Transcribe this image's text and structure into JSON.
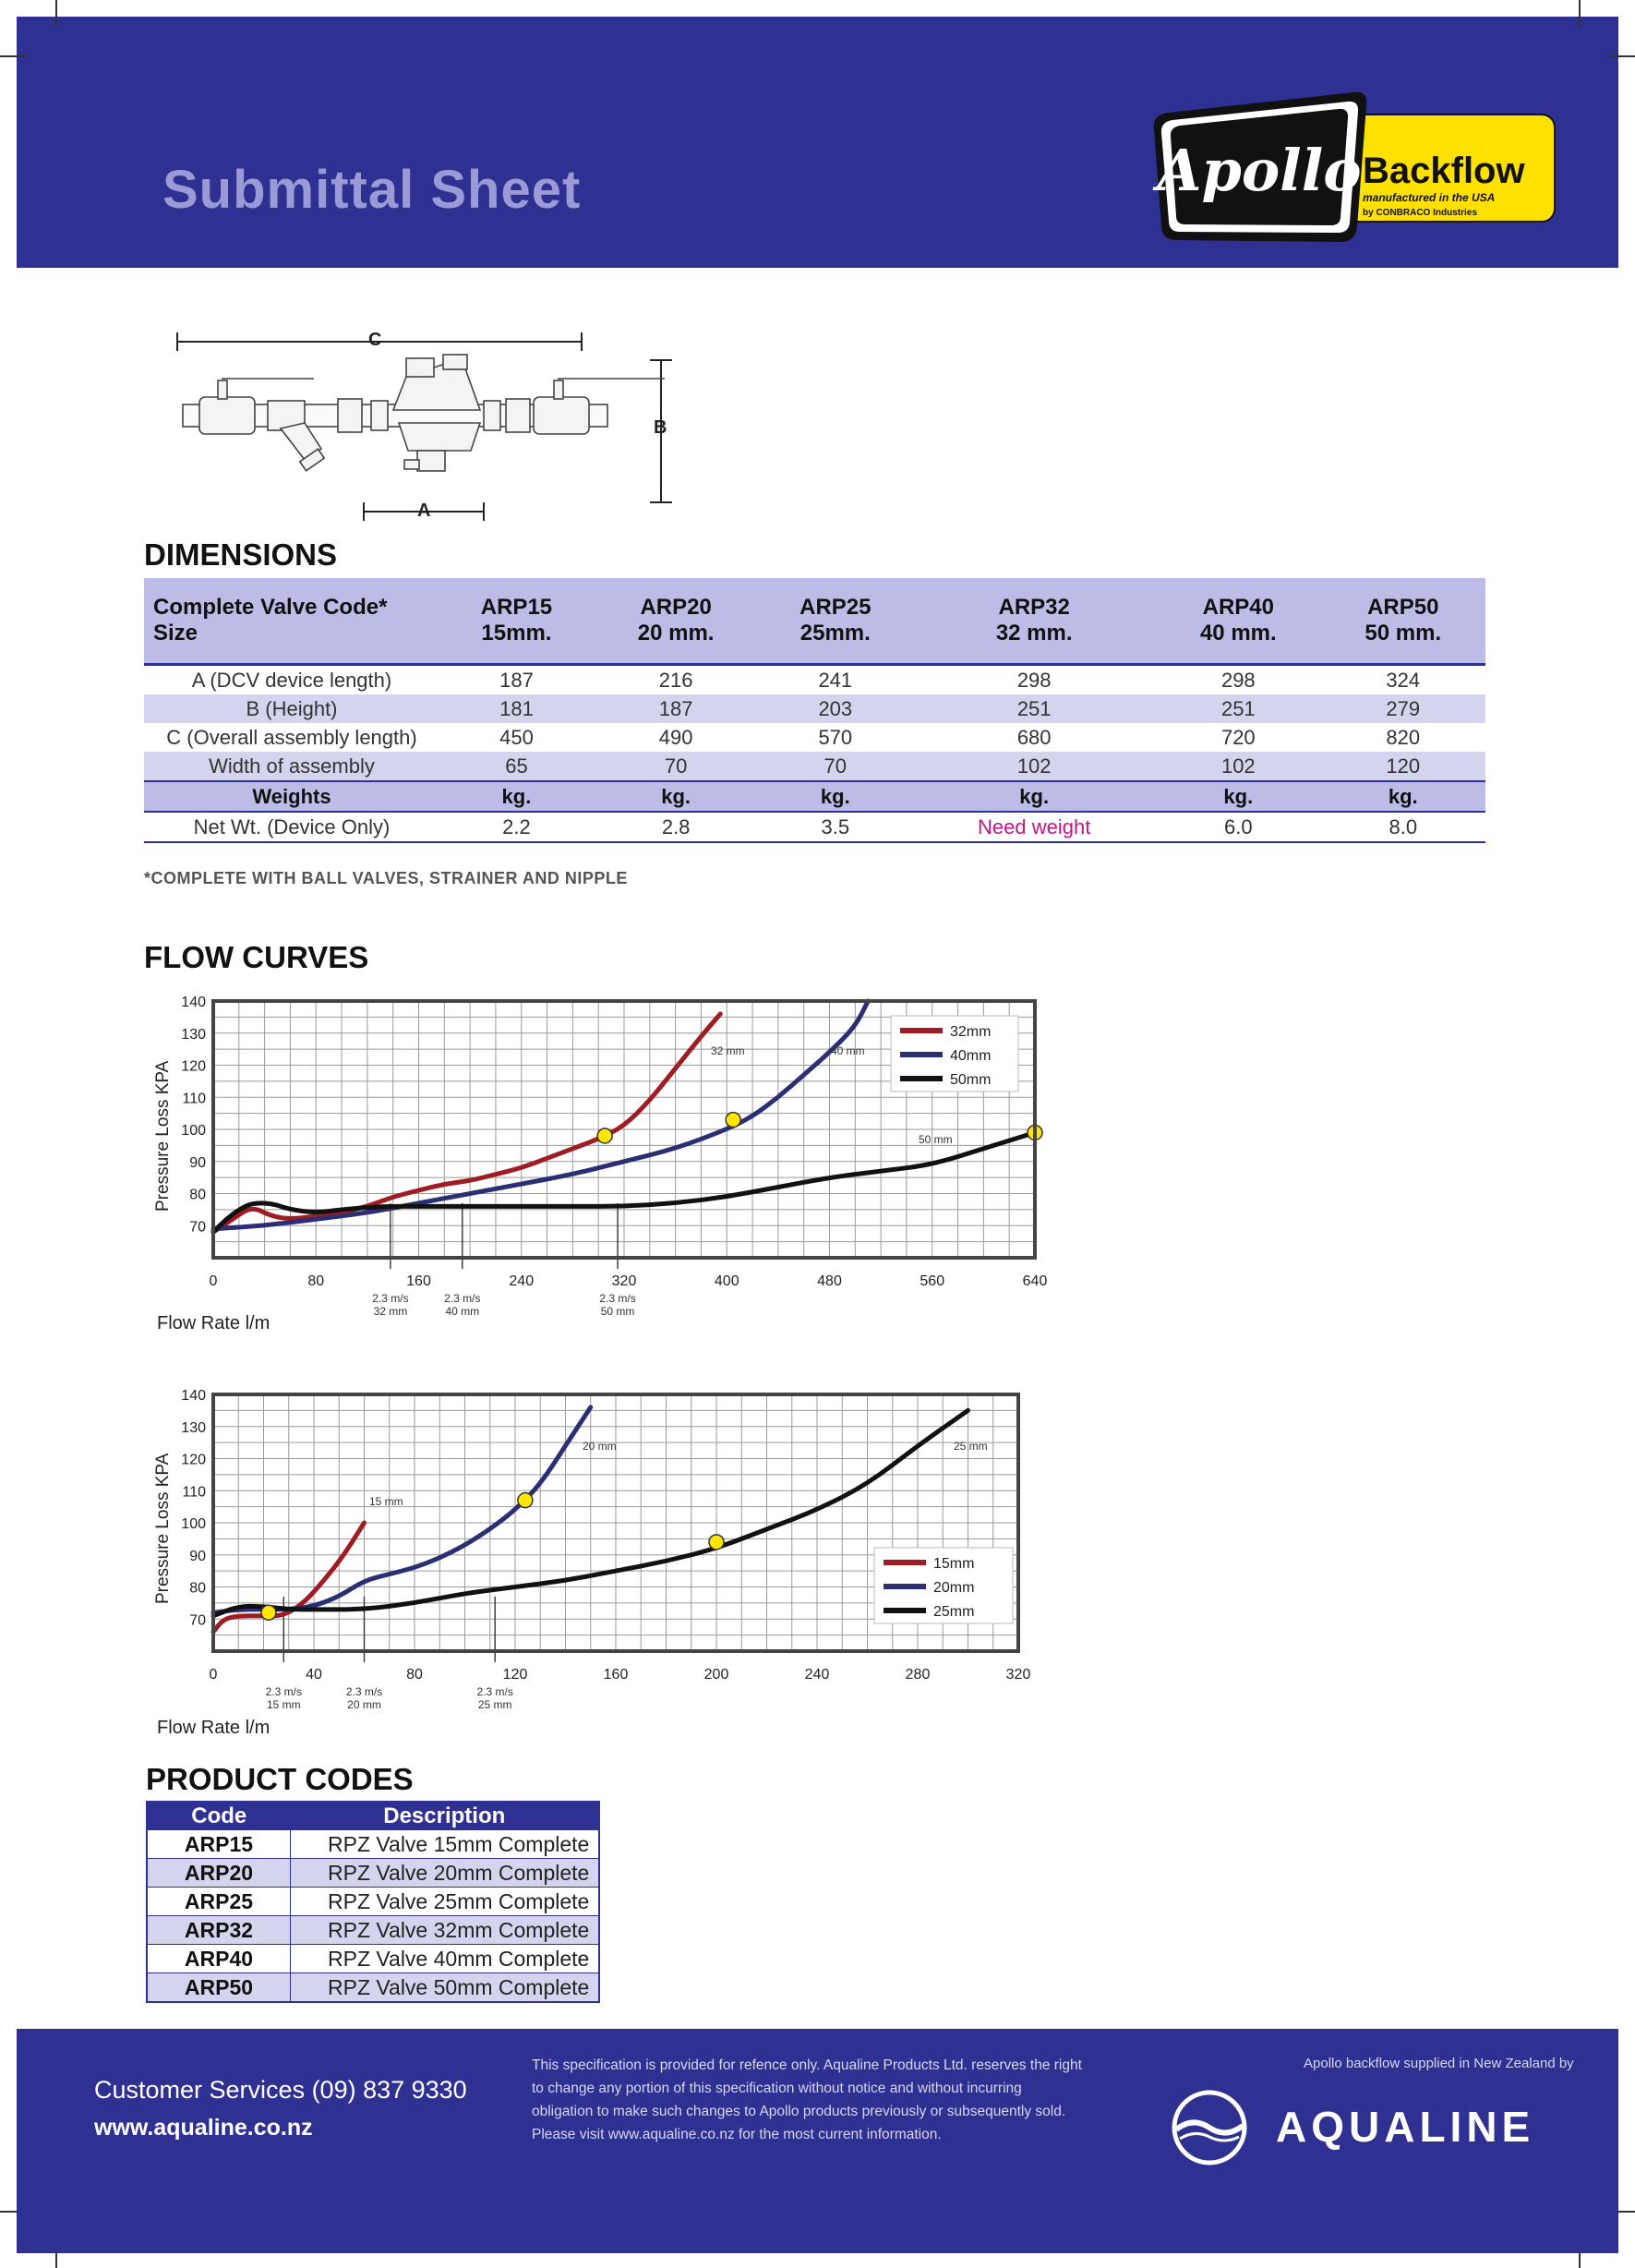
{
  "header": {
    "title": "Submittal Sheet"
  },
  "logo": {
    "brand": "Apollo",
    "product": "Backflow",
    "line1": "manufactured in the USA",
    "line2": "by CONBRACO Industries"
  },
  "diagram": {
    "label_a": "A",
    "label_b": "B",
    "label_c": "C"
  },
  "dimensions": {
    "title": "DIMENSIONS",
    "head_label1": "Complete Valve Code*",
    "head_label2": "Size",
    "columns": [
      {
        "code": "ARP15",
        "size": "15mm."
      },
      {
        "code": "ARP20",
        "size": "20 mm."
      },
      {
        "code": "ARP25",
        "size": "25mm."
      },
      {
        "code": "ARP32",
        "size": "32 mm."
      },
      {
        "code": "ARP40",
        "size": "40 mm."
      },
      {
        "code": "ARP50",
        "size": "50 mm."
      }
    ],
    "rows": [
      {
        "label": "A (DCV device length)",
        "values": [
          "187",
          "216",
          "241",
          "298",
          "298",
          "324"
        ]
      },
      {
        "label": "B (Height)",
        "values": [
          "181",
          "187",
          "203",
          "251",
          "251",
          "279"
        ]
      },
      {
        "label": "C (Overall assembly length)",
        "values": [
          "450",
          "490",
          "570",
          "680",
          "720",
          "820"
        ]
      },
      {
        "label": "Width of assembly",
        "values": [
          "65",
          "70",
          "70",
          "102",
          "102",
          "120"
        ]
      },
      {
        "label": "Weights",
        "values": [
          "kg.",
          "kg.",
          "kg.",
          "kg.",
          "kg.",
          "kg."
        ]
      },
      {
        "label": "Net Wt. (Device Only)",
        "values": [
          "2.2",
          "2.8",
          "3.5",
          "Need weight",
          "6.0",
          "8.0"
        ]
      }
    ],
    "footnote": "*COMPLETE WITH BALL VALVES, STRAINER AND NIPPLE"
  },
  "flow": {
    "title": "FLOW CURVES"
  },
  "chart_data": [
    {
      "type": "line",
      "ylabel": "Pressure Loss KPA",
      "xlabel": "Flow Rate l/m",
      "xlim": [
        0,
        640
      ],
      "ylim": [
        60,
        140
      ],
      "xticks": [
        "0",
        "80",
        "160",
        "240",
        "320",
        "400",
        "480",
        "560",
        "640"
      ],
      "yticks": [
        "70",
        "80",
        "90",
        "100",
        "110",
        "120",
        "130",
        "140"
      ],
      "grid": true,
      "legend_position": "top-right",
      "colors": [
        "#a01c23",
        "#2b2e72",
        "#111111"
      ],
      "series": [
        {
          "name": "32mm",
          "label": "32 mm",
          "x": [
            0,
            15,
            30,
            45,
            60,
            80,
            100,
            120,
            140,
            160,
            180,
            200,
            220,
            240,
            260,
            280,
            300,
            320,
            340,
            360,
            380,
            395
          ],
          "y": [
            68,
            72,
            76,
            73,
            72,
            73,
            74,
            76,
            79,
            81,
            83,
            84,
            86,
            88,
            91,
            94,
            97,
            101,
            109,
            119,
            129,
            136
          ]
        },
        {
          "name": "40mm",
          "label": "40 mm",
          "x": [
            0,
            40,
            80,
            120,
            160,
            200,
            240,
            280,
            320,
            360,
            400,
            420,
            440,
            460,
            480,
            500,
            510
          ],
          "y": [
            69,
            70,
            72,
            74,
            77,
            80,
            83,
            86,
            90,
            94,
            100,
            104,
            110,
            117,
            124,
            132,
            140
          ]
        },
        {
          "name": "50mm",
          "label": "50 mm",
          "x": [
            0,
            10,
            20,
            30,
            45,
            60,
            80,
            100,
            130,
            160,
            200,
            240,
            280,
            320,
            360,
            400,
            440,
            480,
            520,
            560,
            600,
            640
          ],
          "y": [
            68,
            72,
            75,
            77,
            77,
            75,
            74,
            75,
            76,
            76,
            76,
            76,
            76,
            76,
            77,
            79,
            82,
            85,
            87,
            89,
            94,
            99
          ]
        }
      ],
      "markers": [
        {
          "x": 305,
          "y": 98
        },
        {
          "x": 405,
          "y": 103
        },
        {
          "x": 640,
          "y": 99
        }
      ],
      "vlines": [
        {
          "x": 138,
          "label1": "2.3 m/s",
          "label2": "32 mm"
        },
        {
          "x": 194,
          "label1": "2.3 m/s",
          "label2": "40 mm"
        },
        {
          "x": 315,
          "label1": "2.3 m/s",
          "label2": "50 mm"
        }
      ]
    },
    {
      "type": "line",
      "ylabel": "Pressure Loss KPA",
      "xlabel": "Flow Rate l/m",
      "xlim": [
        0,
        320
      ],
      "ylim": [
        60,
        140
      ],
      "xticks": [
        "0",
        "40",
        "80",
        "120",
        "160",
        "200",
        "240",
        "280",
        "320"
      ],
      "xtick_values": [
        0,
        40,
        80,
        120,
        160,
        200,
        240,
        280,
        320
      ],
      "yticks": [
        "70",
        "80",
        "90",
        "100",
        "110",
        "120",
        "130",
        "140"
      ],
      "grid": true,
      "legend_position": "bottom-right",
      "colors": [
        "#a01c23",
        "#2b2e72",
        "#111111"
      ],
      "series": [
        {
          "name": "15mm",
          "label": "15 mm",
          "x": [
            0,
            4,
            10,
            20,
            28,
            36,
            44,
            52,
            60
          ],
          "y": [
            66,
            70,
            71,
            71,
            71,
            75,
            82,
            90,
            100
          ]
        },
        {
          "name": "20mm",
          "label": "20 mm",
          "x": [
            0,
            10,
            20,
            30,
            40,
            50,
            60,
            70,
            80,
            90,
            100,
            110,
            120,
            130,
            140,
            150
          ],
          "y": [
            72,
            73,
            73,
            73,
            74,
            77,
            82,
            84,
            86,
            89,
            93,
            98,
            104,
            112,
            124,
            136
          ]
        },
        {
          "name": "25mm",
          "label": "25 mm",
          "x": [
            0,
            10,
            20,
            30,
            40,
            60,
            80,
            100,
            120,
            140,
            160,
            180,
            200,
            220,
            240,
            260,
            280,
            300
          ],
          "y": [
            71,
            74,
            74,
            73,
            73,
            73,
            75,
            78,
            80,
            82,
            85,
            88,
            92,
            98,
            104,
            112,
            124,
            135
          ]
        }
      ],
      "markers": [
        {
          "x": 22,
          "y": 72
        },
        {
          "x": 124,
          "y": 107
        },
        {
          "x": 200,
          "y": 94
        }
      ],
      "vlines": [
        {
          "x": 28,
          "label1": "2.3 m/s",
          "label2": "15 mm"
        },
        {
          "x": 60,
          "label1": "2.3 m/s",
          "label2": "20 mm"
        },
        {
          "x": 112,
          "label1": "2.3 m/s",
          "label2": "25 mm"
        }
      ]
    }
  ],
  "product_codes": {
    "title": "PRODUCT CODES",
    "col_code": "Code",
    "col_desc": "Description",
    "rows": [
      {
        "code": "ARP15",
        "desc": "RPZ Valve 15mm Complete"
      },
      {
        "code": "ARP20",
        "desc": "RPZ Valve 20mm Complete"
      },
      {
        "code": "ARP25",
        "desc": "RPZ Valve 25mm Complete"
      },
      {
        "code": "ARP32",
        "desc": "RPZ Valve 32mm Complete"
      },
      {
        "code": "ARP40",
        "desc": "RPZ Valve 40mm Complete"
      },
      {
        "code": "ARP50",
        "desc": "RPZ Valve 50mm Complete"
      }
    ]
  },
  "footer": {
    "customer_services": "Customer Services (09) 837 9330",
    "website": "www.aqualine.co.nz",
    "disclaimer": "This specification is provided for refence only. Aqualine Products Ltd. reserves the right to change any portion of this specification without notice and without incurring obligation to make such changes to Apollo products previously or subsequently sold. Please visit www.aqualine.co.nz for the most current information.",
    "supplied_by": "Apollo backflow supplied in New Zealand by",
    "brand": "AQUALINE"
  },
  "theme": {
    "navy": "#2e3192",
    "lavender": "#bcbce6",
    "lavender_light": "#d4d4ef",
    "title_color": "#9a9ad6",
    "logo_yellow": "#ffe100"
  }
}
